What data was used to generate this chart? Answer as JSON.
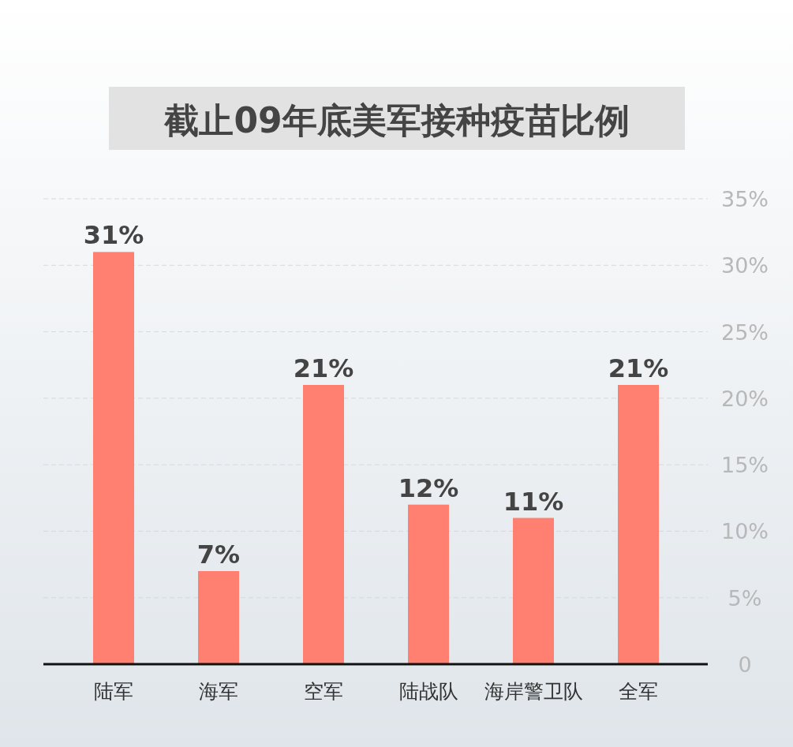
{
  "chart_data": {
    "type": "bar",
    "title": "截止09年底美军接种疫苗比例",
    "categories": [
      "陆军",
      "海军",
      "空军",
      "陆战队",
      "海岸警卫队",
      "全军"
    ],
    "values": [
      31,
      7,
      21,
      12,
      11,
      21
    ],
    "value_labels": [
      "31%",
      "7%",
      "21%",
      "12%",
      "11%",
      "21%"
    ],
    "color": "#ff8070",
    "ylim": [
      0,
      35
    ],
    "yticks": [
      {
        "value": 0,
        "label": "0"
      },
      {
        "value": 5,
        "label": "5%"
      },
      {
        "value": 10,
        "label": "10%"
      },
      {
        "value": 15,
        "label": "15%"
      },
      {
        "value": 20,
        "label": "20%"
      },
      {
        "value": 25,
        "label": "25%"
      },
      {
        "value": 30,
        "label": "30%"
      },
      {
        "value": 35,
        "label": "35%"
      }
    ],
    "grid": "y"
  }
}
